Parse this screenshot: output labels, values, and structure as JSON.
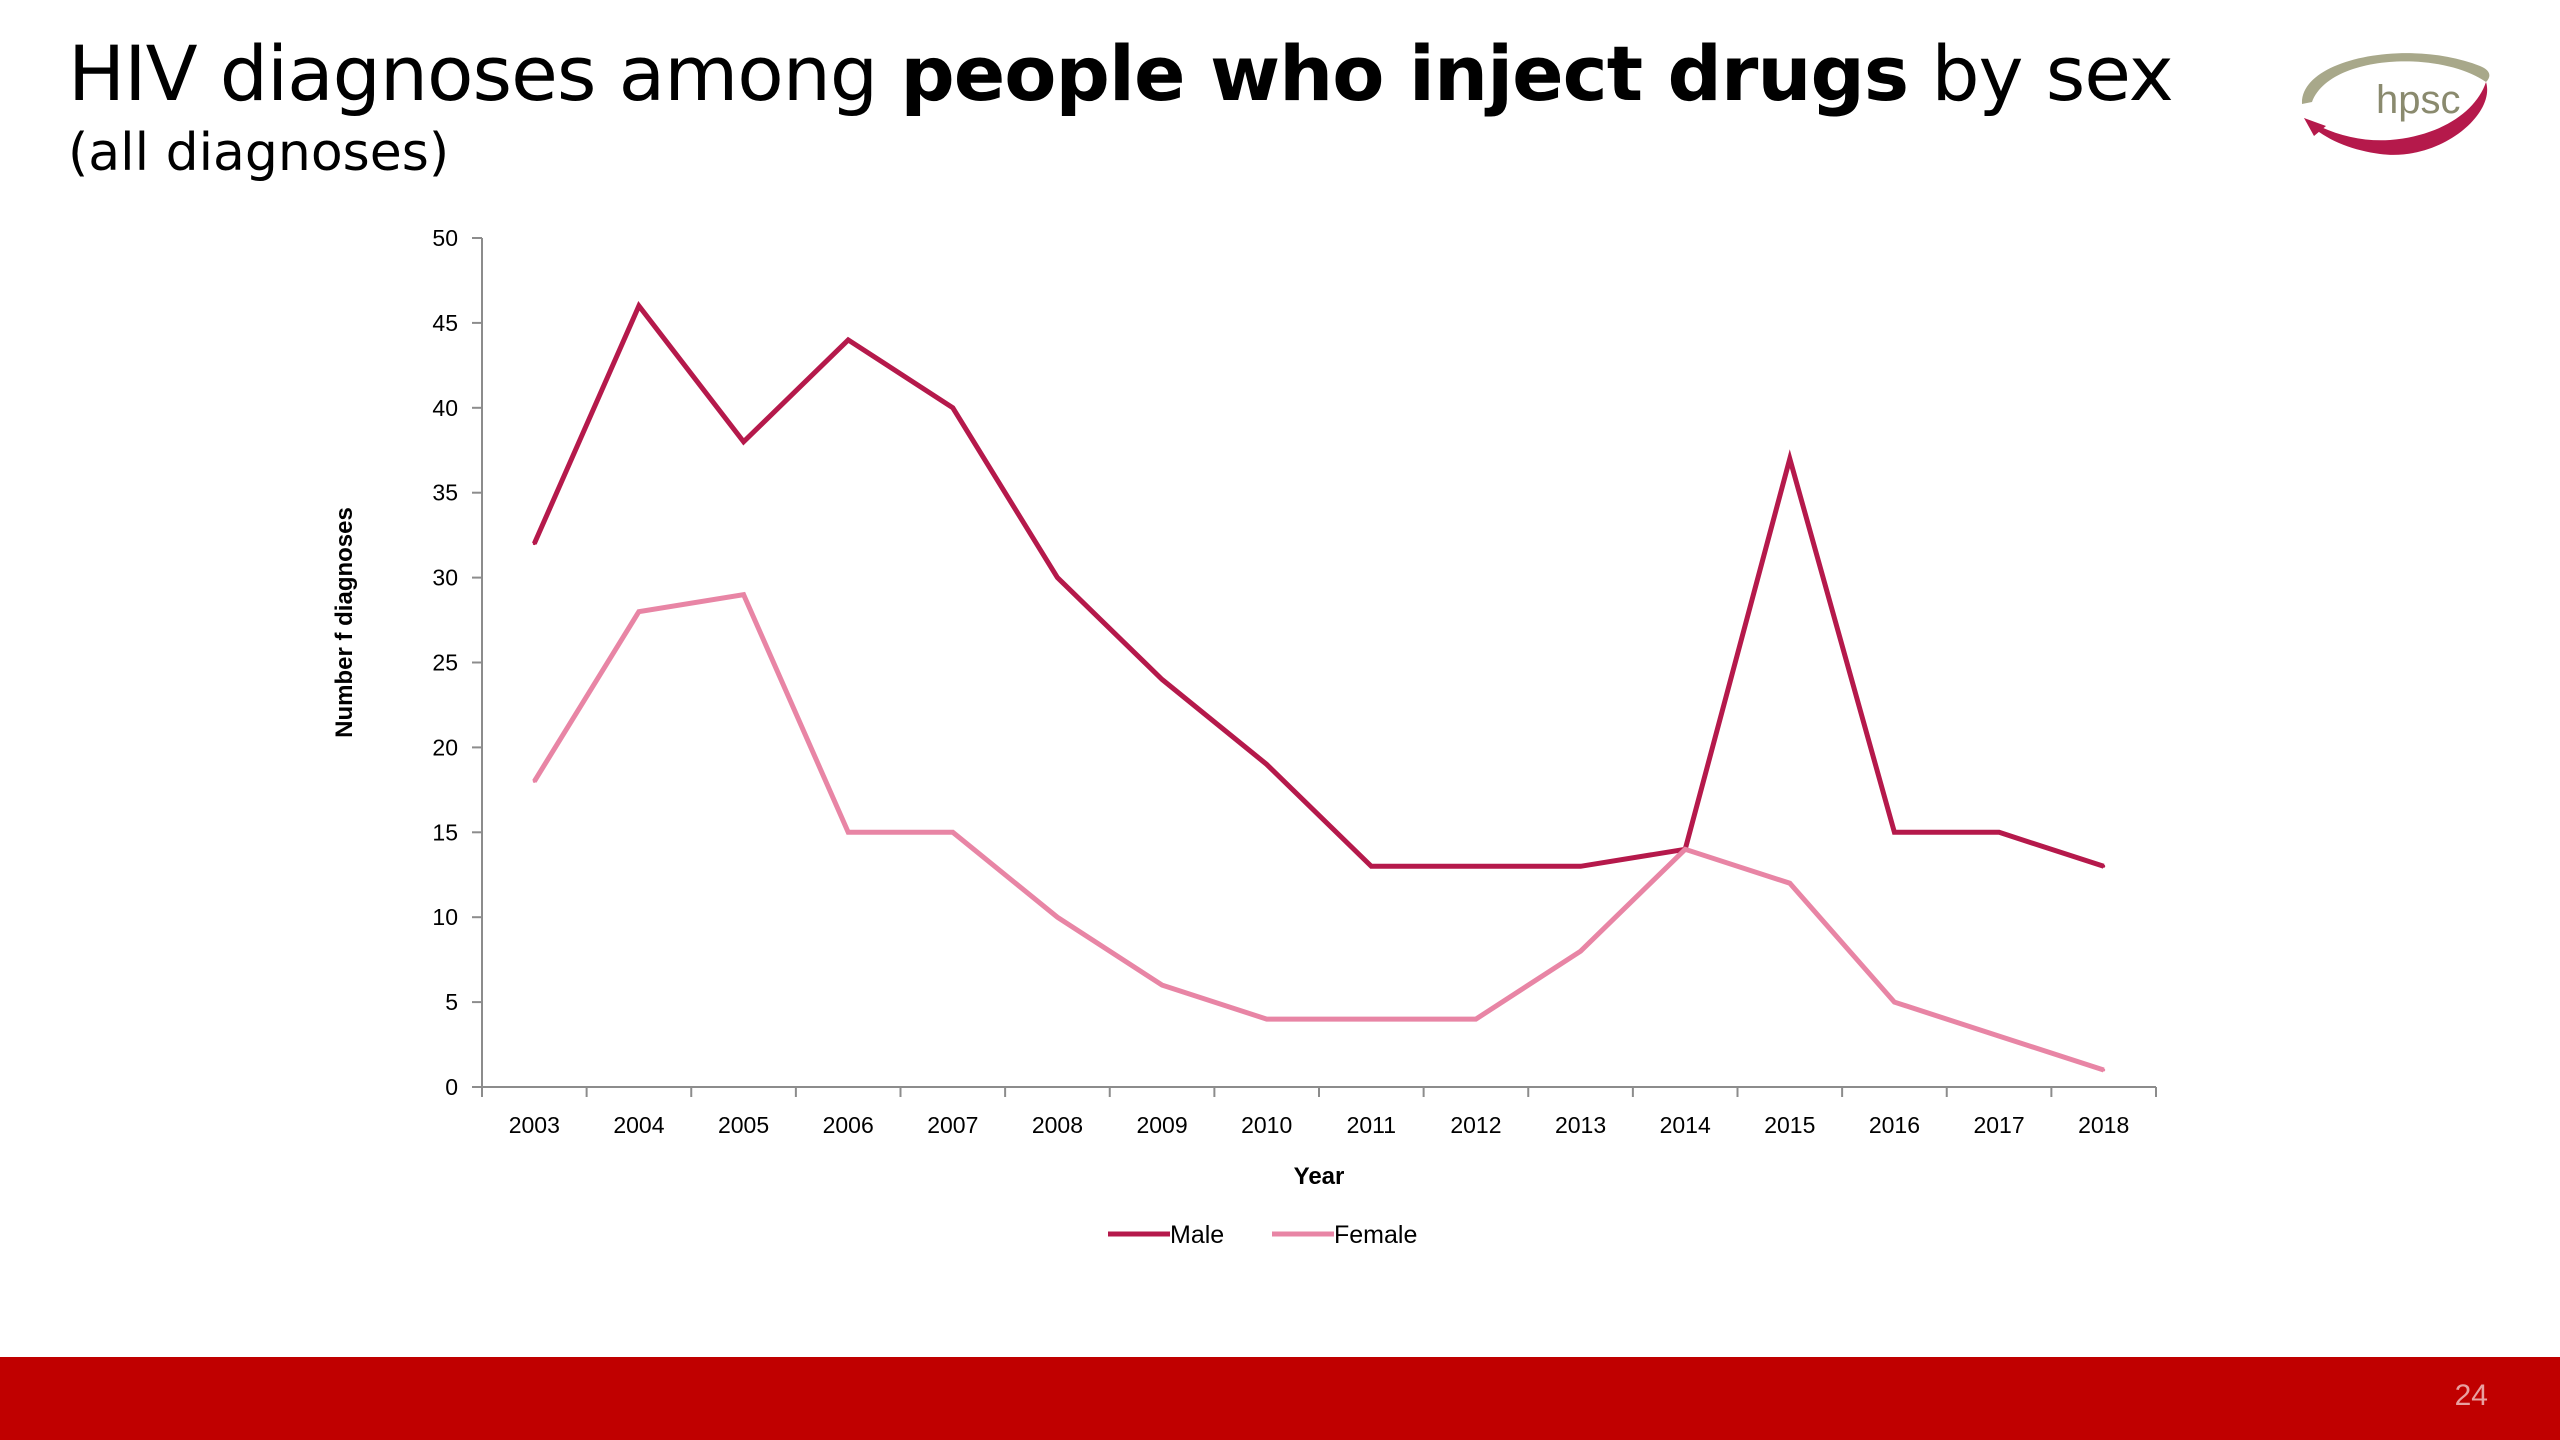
{
  "slide": {
    "title_prefix": "HIV diagnoses among ",
    "title_bold": "people who inject drugs",
    "title_suffix": " by sex",
    "subtitle": "(all diagnoses)",
    "logo_text": "hpsc",
    "page_number": "24",
    "footer_color": "#c00000"
  },
  "chart_data": {
    "type": "line",
    "title": "",
    "xlabel": "Year",
    "ylabel": "Number f diagnoses",
    "ylim": [
      0,
      50
    ],
    "yticks": [
      0,
      5,
      10,
      15,
      20,
      25,
      30,
      35,
      40,
      45,
      50
    ],
    "categories": [
      "2003",
      "2004",
      "2005",
      "2006",
      "2007",
      "2008",
      "2009",
      "2010",
      "2011",
      "2012",
      "2013",
      "2014",
      "2015",
      "2016",
      "2017",
      "2018"
    ],
    "series": [
      {
        "name": "Male",
        "color": "#b5194b",
        "values": [
          32,
          46,
          38,
          44,
          40,
          30,
          24,
          19,
          13,
          13,
          13,
          14,
          37,
          15,
          15,
          13
        ]
      },
      {
        "name": "Female",
        "color": "#e885a5",
        "values": [
          18,
          28,
          29,
          15,
          15,
          10,
          6,
          4,
          4,
          4,
          8,
          14,
          12,
          5,
          3,
          1
        ]
      }
    ],
    "legend_position": "bottom",
    "grid": false
  }
}
